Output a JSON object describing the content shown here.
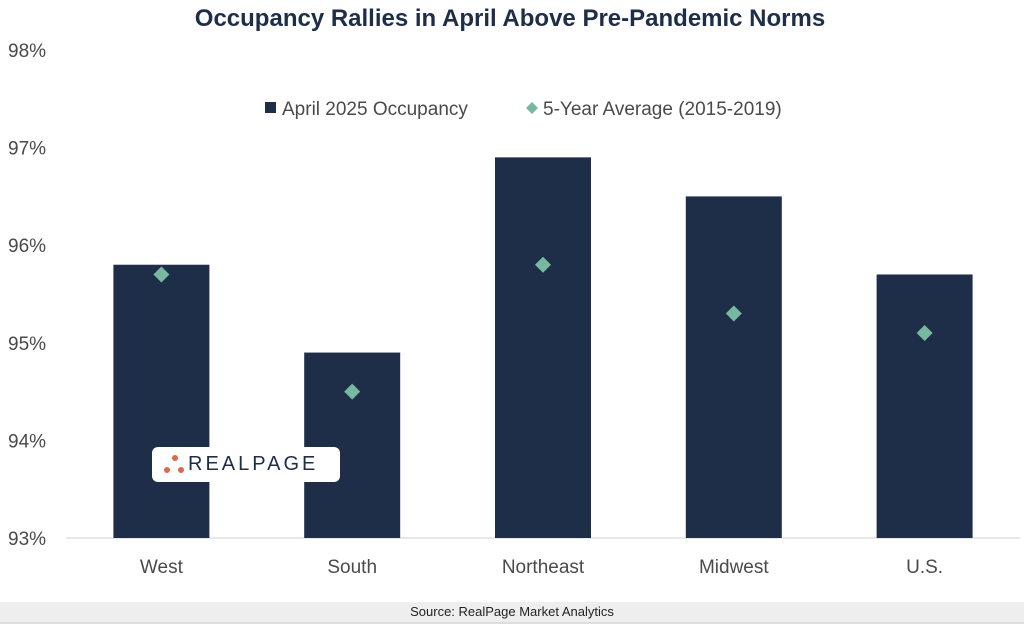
{
  "chart_data": {
    "type": "bar",
    "title": "Occupancy Rallies in April Above Pre-Pandemic Norms",
    "xlabel": "",
    "ylabel": "",
    "categories": [
      "West",
      "South",
      "Northeast",
      "Midwest",
      "U.S."
    ],
    "series": [
      {
        "name": "April 2025 Occupancy",
        "mark": "bar",
        "color": "#1f2e48",
        "values": [
          95.8,
          94.9,
          96.9,
          96.5,
          95.7
        ]
      },
      {
        "name": "5-Year Average (2015-2019)",
        "mark": "diamond",
        "color": "#78b8a0",
        "values": [
          95.7,
          94.5,
          95.8,
          95.3,
          95.1
        ]
      }
    ],
    "ylim": [
      93,
      98
    ],
    "yticks": [
      "93%",
      "94%",
      "95%",
      "96%",
      "97%",
      "98%"
    ],
    "grid": false,
    "legend_position": "top-center"
  },
  "logo": {
    "icon": "realpage-dots-icon",
    "text": "REALPAGE",
    "color": "#d9694a"
  },
  "source": "Source: RealPage Market Analytics"
}
